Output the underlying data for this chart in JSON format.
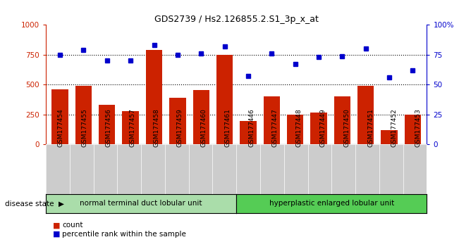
{
  "title": "GDS2739 / Hs2.126855.2.S1_3p_x_at",
  "samples": [
    "GSM177454",
    "GSM177455",
    "GSM177456",
    "GSM177457",
    "GSM177458",
    "GSM177459",
    "GSM177460",
    "GSM177461",
    "GSM177446",
    "GSM177447",
    "GSM177448",
    "GSM177449",
    "GSM177450",
    "GSM177451",
    "GSM177452",
    "GSM177453"
  ],
  "counts": [
    460,
    490,
    330,
    280,
    790,
    390,
    455,
    750,
    195,
    400,
    250,
    265,
    400,
    490,
    120,
    250
  ],
  "percentiles": [
    75,
    79,
    70,
    70,
    83,
    75,
    76,
    82,
    57,
    76,
    67,
    73,
    74,
    80,
    56,
    62
  ],
  "group1_label": "normal terminal duct lobular unit",
  "group2_label": "hyperplastic enlarged lobular unit",
  "group1_count": 8,
  "group2_count": 8,
  "bar_color": "#cc2200",
  "dot_color": "#0000cc",
  "group1_bg": "#aaddaa",
  "group2_bg": "#55cc55",
  "tick_bg": "#cccccc",
  "left_axis_color": "#cc2200",
  "right_axis_color": "#0000cc",
  "ylim_left": [
    0,
    1000
  ],
  "ylim_right": [
    0,
    100
  ],
  "yticks_left": [
    0,
    250,
    500,
    750,
    1000
  ],
  "ytick_labels_left": [
    "0",
    "250",
    "500",
    "750",
    "1000"
  ],
  "yticks_right": [
    0,
    25,
    50,
    75,
    100
  ],
  "ytick_labels_right": [
    "0",
    "25",
    "50",
    "75",
    "100%"
  ],
  "grid_lines": [
    250,
    500,
    750
  ],
  "legend_count_label": "count",
  "legend_pct_label": "percentile rank within the sample",
  "disease_state_label": "disease state"
}
